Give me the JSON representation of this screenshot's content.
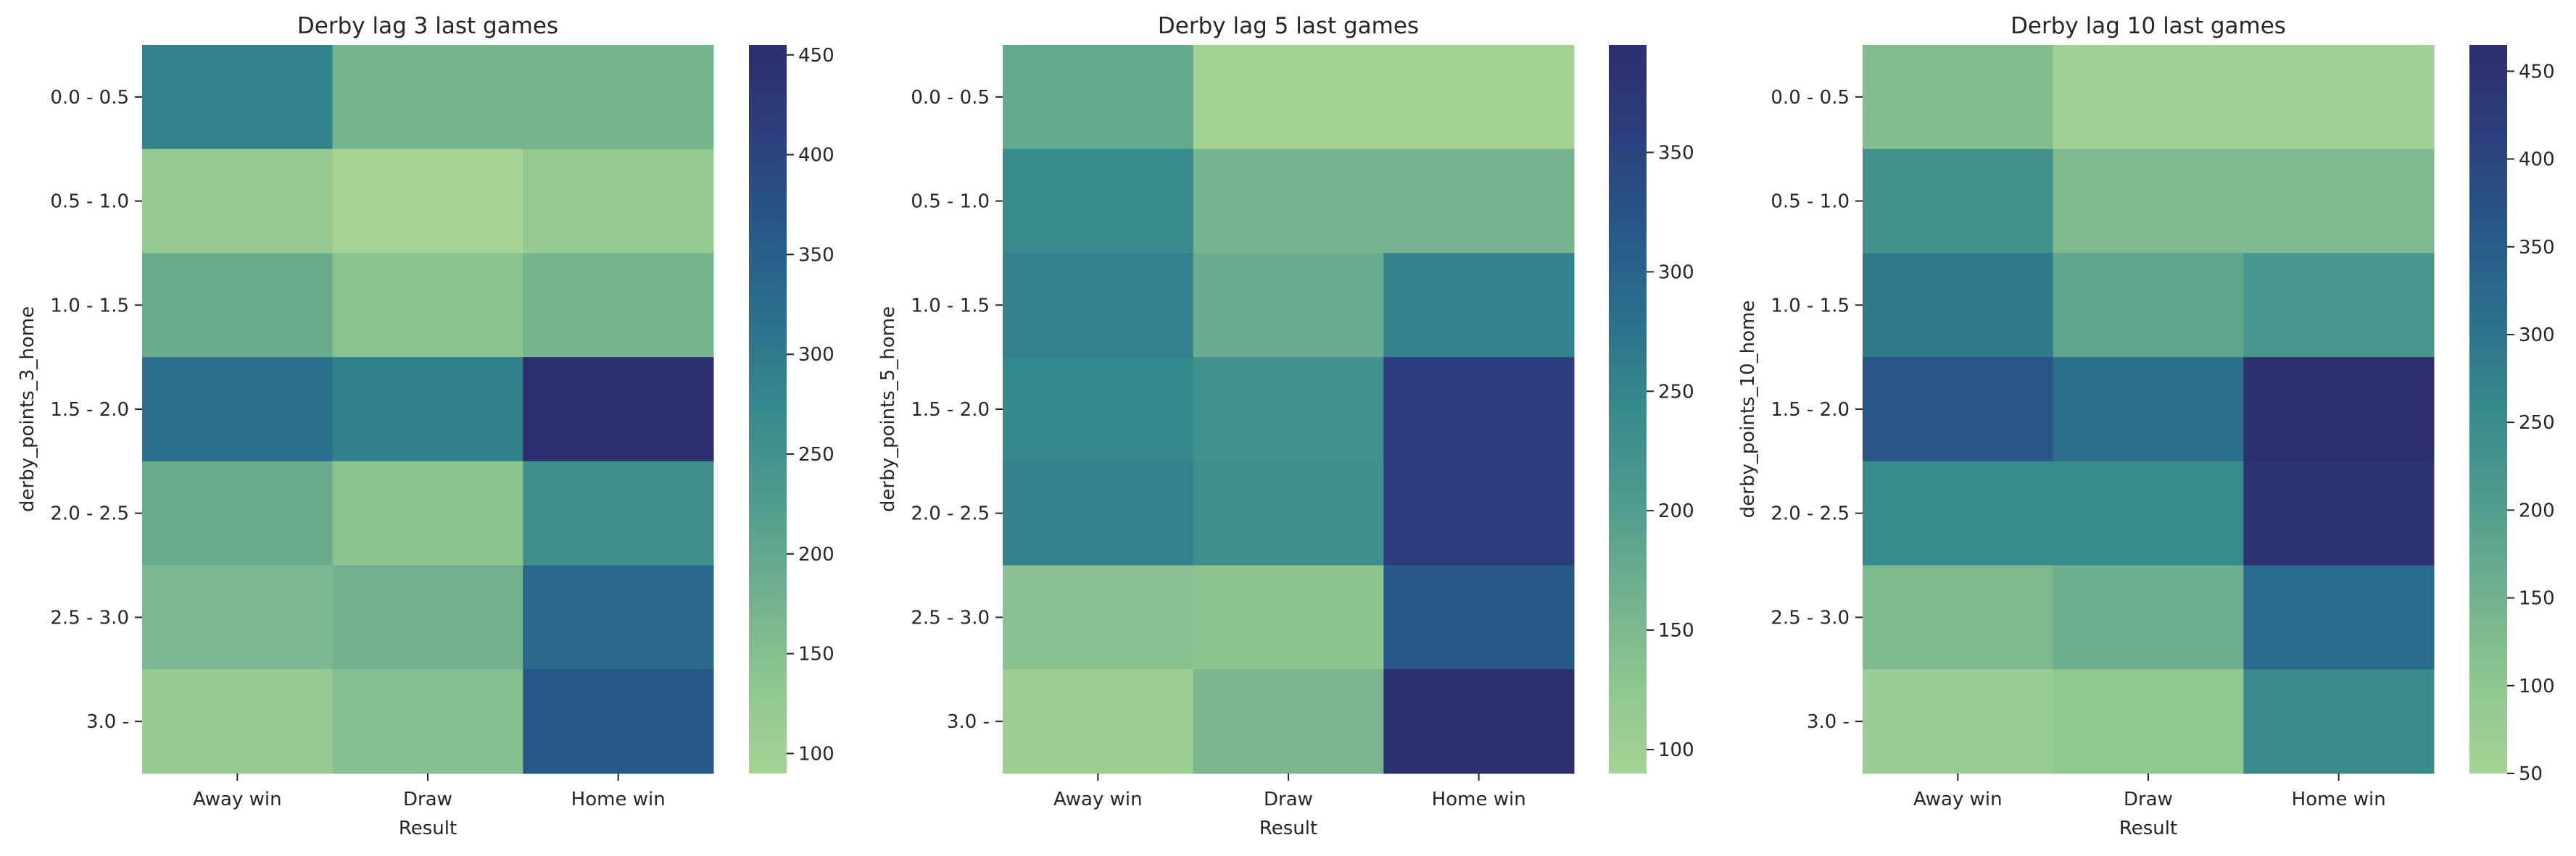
{
  "chart_data": [
    {
      "type": "heatmap",
      "title": "Derby lag 3 last games",
      "xlabel": "Result",
      "ylabel": "derby_points_3_home",
      "x_categories": [
        "Away win",
        "Draw",
        "Home win"
      ],
      "y_categories": [
        "0.0 - 0.5",
        "0.5 - 1.0",
        "1.0 - 1.5",
        "1.5 - 2.0",
        "2.0 - 2.5",
        "2.5 - 3.0",
        "3.0 -"
      ],
      "values": [
        [
          285,
          170,
          170
        ],
        [
          120,
          90,
          125
        ],
        [
          190,
          140,
          170
        ],
        [
          320,
          290,
          455
        ],
        [
          190,
          140,
          255
        ],
        [
          165,
          180,
          330
        ],
        [
          120,
          150,
          365
        ]
      ],
      "colorbar": {
        "range": [
          90,
          455
        ],
        "ticks": [
          100,
          150,
          200,
          250,
          300,
          350,
          400,
          450
        ]
      },
      "colormap": [
        "#a6d395",
        "#8ec690",
        "#70b08e",
        "#4f9b8e",
        "#368a8c",
        "#2b6f8d",
        "#275888",
        "#2c3f7e",
        "#2c2e6e"
      ],
      "grid": false
    },
    {
      "type": "heatmap",
      "title": "Derby lag 5 last games",
      "xlabel": "Result",
      "ylabel": "derby_points_5_home",
      "x_categories": [
        "Away win",
        "Draw",
        "Home win"
      ],
      "y_categories": [
        "0.0 - 0.5",
        "0.5 - 1.0",
        "1.0 - 1.5",
        "1.5 - 2.0",
        "2.0 - 2.5",
        "2.5 - 3.0",
        "3.0 -"
      ],
      "values": [
        [
          180,
          95,
          95
        ],
        [
          240,
          160,
          160
        ],
        [
          255,
          175,
          255
        ],
        [
          245,
          225,
          360
        ],
        [
          255,
          230,
          360
        ],
        [
          135,
          130,
          320
        ],
        [
          105,
          155,
          395
        ]
      ],
      "colorbar": {
        "range": [
          90,
          395
        ],
        "ticks": [
          100,
          150,
          200,
          250,
          300,
          350
        ]
      },
      "colormap": [
        "#a6d395",
        "#8ec690",
        "#70b08e",
        "#4f9b8e",
        "#368a8c",
        "#2b6f8d",
        "#275888",
        "#2c3f7e",
        "#2c2e6e"
      ],
      "grid": false
    },
    {
      "type": "heatmap",
      "title": "Derby lag 10 last games",
      "xlabel": "Result",
      "ylabel": "derby_points_10_home",
      "x_categories": [
        "Away win",
        "Draw",
        "Home win"
      ],
      "y_categories": [
        "0.0 - 0.5",
        "0.5 - 1.0",
        "1.0 - 1.5",
        "1.5 - 2.0",
        "2.0 - 2.5",
        "2.5 - 3.0",
        "3.0 -"
      ],
      "values": [
        [
          120,
          60,
          60
        ],
        [
          230,
          130,
          130
        ],
        [
          290,
          180,
          220
        ],
        [
          365,
          310,
          465
        ],
        [
          255,
          255,
          450
        ],
        [
          130,
          160,
          320
        ],
        [
          75,
          95,
          250
        ]
      ],
      "colorbar": {
        "range": [
          50,
          465
        ],
        "ticks": [
          50,
          100,
          150,
          200,
          250,
          300,
          350,
          400,
          450
        ]
      },
      "colormap": [
        "#a6d395",
        "#8ec690",
        "#70b08e",
        "#4f9b8e",
        "#368a8c",
        "#2b6f8d",
        "#275888",
        "#2c3f7e",
        "#2c2e6e"
      ],
      "grid": false
    }
  ]
}
